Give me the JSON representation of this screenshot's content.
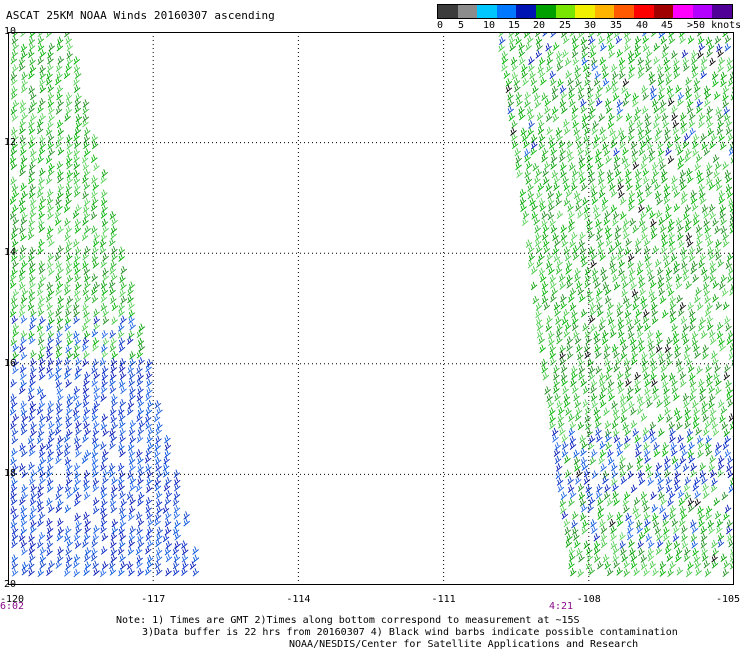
{
  "title": "ASCAT 25KM NOAA Winds 20160307 ascending",
  "legend": {
    "colors": [
      "#3c3c3c",
      "#8c8c8c",
      "#00c8ff",
      "#0078ff",
      "#0014b4",
      "#00a000",
      "#78e600",
      "#f0f000",
      "#ffb400",
      "#ff5a00",
      "#ff0000",
      "#a00000",
      "#ff00ff",
      "#b400ff",
      "#500096"
    ],
    "labels": [
      "0",
      "5",
      "10",
      "15",
      "20",
      "25",
      "30",
      "35",
      "40",
      "45",
      ">50 knots"
    ]
  },
  "chart_data": {
    "type": "scatter",
    "xlim": [
      -120,
      -105
    ],
    "ylim": [
      10,
      20
    ],
    "x_ticks": [
      "-120",
      "-117",
      "-114",
      "-111",
      "-108",
      "-105"
    ],
    "y_ticks": [
      "10",
      "12",
      "14",
      "16",
      "18",
      "20"
    ],
    "grid": true,
    "y_axis_latitude_increases": "downward"
  },
  "times": {
    "left": "6:02",
    "right": "4:21"
  },
  "notes": {
    "line1": "Note: 1) Times are GMT 2)Times along bottom correspond to measurement at ~15S",
    "line2": "3)Data buffer is 22 hrs from 20160307 4) Black wind barbs indicate possible contamination",
    "line3": "NOAA/NESDIS/Center for Satellite Applications and Research"
  }
}
